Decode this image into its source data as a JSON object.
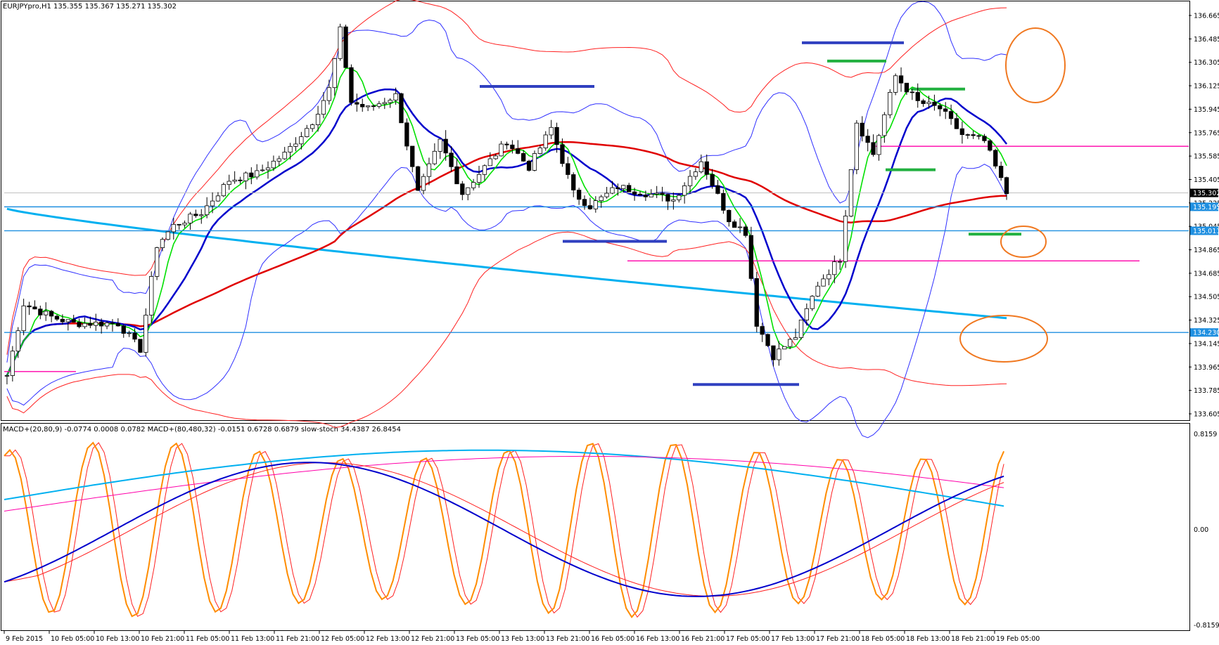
{
  "header": {
    "symbol_info": "EURJPYpro,H1 135.355 135.367 135.271 135.302"
  },
  "indicator_header": "MACD+(20,80,9) -0.0774 0.0008 0.0782 MACD+(80,480,32) -0.0151 0.6728 0.6879 slow-stoch 34.4387 26.8454",
  "colors": {
    "background": "#ffffff",
    "bull_candle": "#ffffff",
    "bear_candle": "#000000",
    "ma_fast": "#00e000",
    "ma_mid": "#0000cc",
    "ma_slow": "#e00000",
    "ma_long": "#00b0f0",
    "bb_blue": "#3030ff",
    "bb_red": "#ff2020",
    "hline": "#1f8fe0",
    "magenta": "#ff00aa",
    "resistance": "#3040c0",
    "green_level": "#22b040",
    "circle": "#f07820",
    "stoch": "#ff8c00"
  },
  "price_axis": {
    "ticks": [
      "136.665",
      "136.485",
      "136.305",
      "136.125",
      "135.945",
      "135.765",
      "135.585",
      "135.405",
      "135.225",
      "135.045",
      "134.865",
      "134.685",
      "134.505",
      "134.325",
      "134.145",
      "133.965",
      "133.785",
      "133.605"
    ],
    "current_price": "135.302",
    "level_labels": [
      "135.195",
      "135.011",
      "134.230"
    ]
  },
  "indicator_axis": {
    "ticks": [
      "0.8159",
      "0.00",
      "-0.8159"
    ]
  },
  "time_axis": {
    "ticks": [
      "9 Feb 2015",
      "10 Feb 05:00",
      "10 Feb 13:00",
      "10 Feb 21:00",
      "11 Feb 05:00",
      "11 Feb 13:00",
      "11 Feb 21:00",
      "12 Feb 05:00",
      "12 Feb 13:00",
      "12 Feb 21:00",
      "13 Feb 05:00",
      "13 Feb 13:00",
      "13 Feb 21:00",
      "16 Feb 05:00",
      "16 Feb 13:00",
      "16 Feb 21:00",
      "17 Feb 05:00",
      "17 Feb 13:00",
      "17 Feb 21:00",
      "18 Feb 05:00",
      "18 Feb 13:00",
      "18 Feb 21:00",
      "19 Feb 05:00"
    ]
  },
  "chart_data": [
    {
      "type": "candlestick",
      "title": "EURJPYpro,H1",
      "ylim": [
        133.605,
        136.665
      ],
      "bars": 181,
      "close_path": [
        [
          0,
          133.9
        ],
        [
          3,
          134.45
        ],
        [
          8,
          134.35
        ],
        [
          12,
          134.3
        ],
        [
          16,
          134.3
        ],
        [
          20,
          134.3
        ],
        [
          24,
          134.1
        ],
        [
          27,
          134.9
        ],
        [
          30,
          135.05
        ],
        [
          35,
          135.15
        ],
        [
          40,
          135.4
        ],
        [
          45,
          135.45
        ],
        [
          50,
          135.6
        ],
        [
          55,
          135.85
        ],
        [
          58,
          136.1
        ],
        [
          60,
          136.55
        ],
        [
          62,
          136.0
        ],
        [
          65,
          135.95
        ],
        [
          70,
          136.05
        ],
        [
          74,
          135.3
        ],
        [
          78,
          135.7
        ],
        [
          82,
          135.3
        ],
        [
          86,
          135.5
        ],
        [
          90,
          135.7
        ],
        [
          94,
          135.5
        ],
        [
          98,
          135.8
        ],
        [
          102,
          135.3
        ],
        [
          105,
          135.2
        ],
        [
          110,
          135.35
        ],
        [
          115,
          135.3
        ],
        [
          120,
          135.25
        ],
        [
          125,
          135.55
        ],
        [
          130,
          135.1
        ],
        [
          133,
          135.0
        ],
        [
          135,
          134.3
        ],
        [
          138,
          134.05
        ],
        [
          142,
          134.2
        ],
        [
          146,
          134.6
        ],
        [
          150,
          134.8
        ],
        [
          153,
          135.85
        ],
        [
          156,
          135.6
        ],
        [
          160,
          136.2
        ],
        [
          164,
          136.0
        ],
        [
          168,
          135.95
        ],
        [
          172,
          135.75
        ],
        [
          176,
          135.7
        ],
        [
          180,
          135.3
        ],
        [
          184,
          135.25
        ],
        [
          187,
          135.35
        ],
        [
          189,
          135.3
        ]
      ]
    },
    {
      "type": "line",
      "title": "MACD+(20,80,9) MACD+(80,480,32) slow-stoch",
      "ylim": [
        -0.8159,
        0.8159
      ],
      "values_text": "MACD+(20,80,9) -0.0774 0.0008 0.0782 MACD+(80,480,32) -0.0151 0.6728 0.6879 slow-stoch 34.4387 26.8454"
    }
  ]
}
